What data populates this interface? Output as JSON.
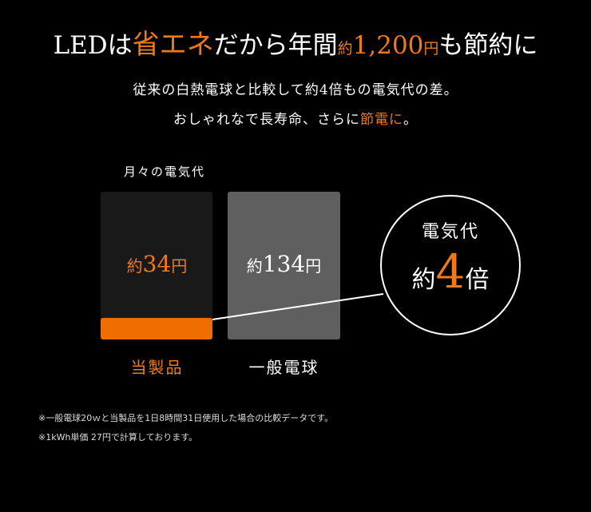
{
  "headline": {
    "part1": "LEDは",
    "highlight1": "省エネ",
    "part2": "だから年間",
    "approx": "約",
    "amount": "1,200",
    "yen": "円",
    "part3": "も節約に"
  },
  "subtext": {
    "line1": "従来の白熱電球と比較して約4倍もの電気代の差。",
    "line2_prefix": "おしゃれなで長寿命、さらに",
    "line2_highlight": "節電に",
    "line2_suffix": "。"
  },
  "chart": {
    "label": "月々の電気代",
    "items": [
      {
        "category": "当製品",
        "approx": "約",
        "value": "34",
        "unit": "円",
        "amount": 34,
        "color": "#f06e00"
      },
      {
        "category": "一般電球",
        "approx": "約",
        "value": "134",
        "unit": "円",
        "amount": 134,
        "color": "#5f5f5f"
      }
    ]
  },
  "callout": {
    "top": "電気代",
    "approx": "約",
    "multiplier": "4",
    "suffix": "倍"
  },
  "notes": [
    "※一般電球20ｗと当製品を1日8時間31日使用した場合の比較データです。",
    "※1kWh単価 27円で計算しております。"
  ],
  "colors": {
    "accent": "#f07a1a",
    "background": "#000000"
  }
}
